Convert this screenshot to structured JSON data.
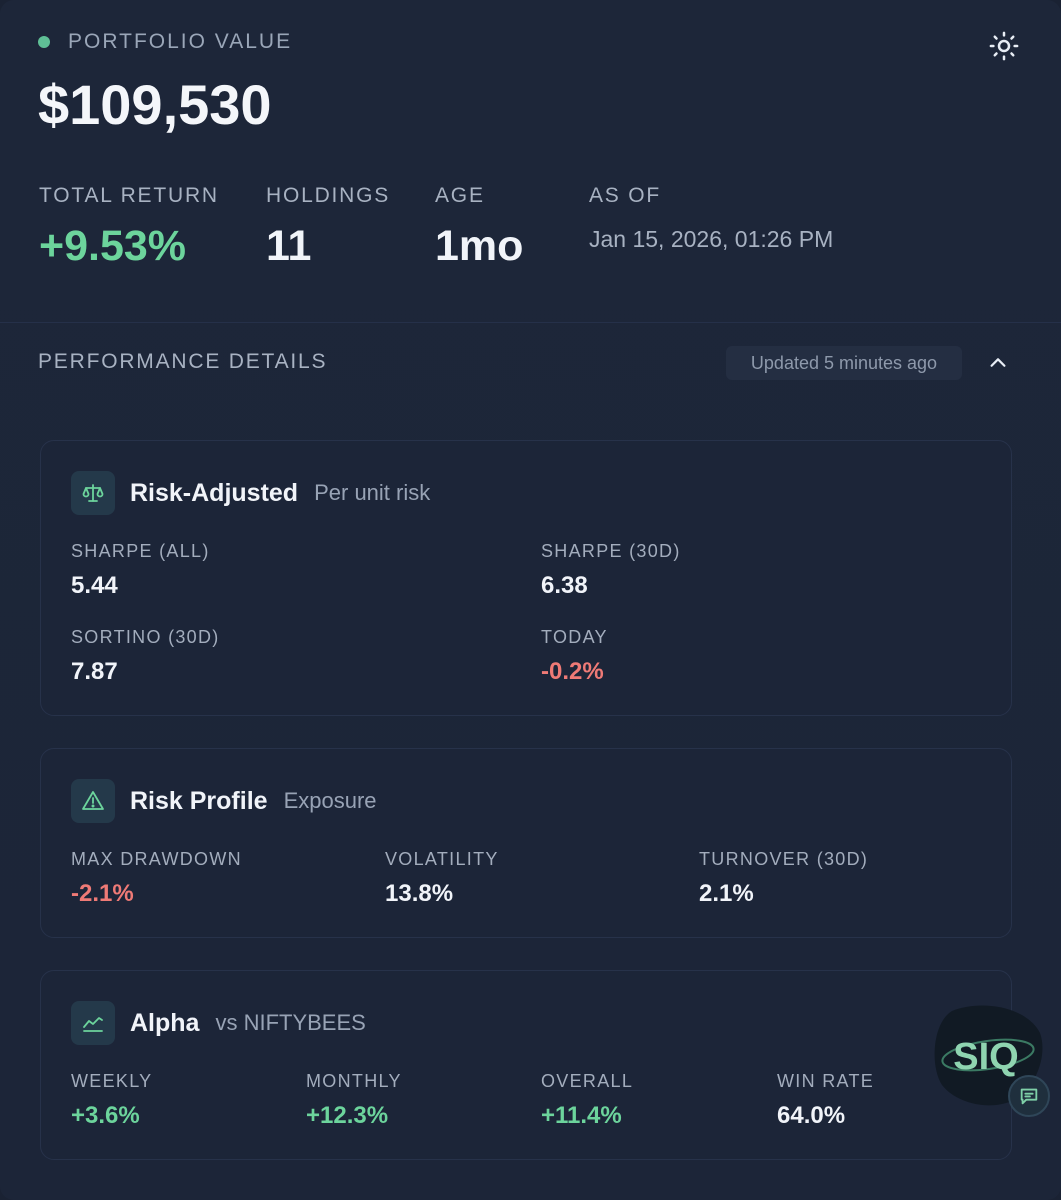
{
  "header": {
    "label": "PORTFOLIO VALUE",
    "value": "$109,530",
    "stats": [
      {
        "label": "TOTAL RETURN",
        "value": "+9.53%"
      },
      {
        "label": "HOLDINGS",
        "value": "11"
      },
      {
        "label": "AGE",
        "value": "1mo"
      },
      {
        "label": "AS OF",
        "value": "Jan 15, 2026, 01:26 PM"
      }
    ],
    "theme_icon": "sun-icon"
  },
  "performance": {
    "title": "PERFORMANCE DETAILS",
    "updated": "Updated 5 minutes ago",
    "toggle_icon": "chevron-up-icon"
  },
  "cards": {
    "risk_adjusted": {
      "title": "Risk-Adjusted",
      "subtitle": "Per unit risk",
      "icon": "scale-icon",
      "metrics": [
        {
          "label": "SHARPE (ALL)",
          "value": "5.44"
        },
        {
          "label": "SHARPE (30D)",
          "value": "6.38"
        },
        {
          "label": "SORTINO (30D)",
          "value": "7.87"
        },
        {
          "label": "TODAY",
          "value": "-0.2%"
        }
      ]
    },
    "risk_profile": {
      "title": "Risk Profile",
      "subtitle": "Exposure",
      "icon": "warning-icon",
      "metrics": [
        {
          "label": "MAX DRAWDOWN",
          "value": "-2.1%"
        },
        {
          "label": "VOLATILITY",
          "value": "13.8%"
        },
        {
          "label": "TURNOVER (30D)",
          "value": "2.1%"
        }
      ]
    },
    "alpha": {
      "title": "Alpha",
      "subtitle": "vs NIFTYBEES",
      "icon": "trend-chart-icon",
      "metrics": [
        {
          "label": "WEEKLY",
          "value": "+3.6%"
        },
        {
          "label": "MONTHLY",
          "value": "+12.3%"
        },
        {
          "label": "OVERALL",
          "value": "+11.4%"
        },
        {
          "label": "WIN RATE",
          "value": "64.0%"
        }
      ]
    }
  },
  "widget": {
    "logo_text": "SIQ",
    "chat_icon": "chat-bubble-icon"
  },
  "colors": {
    "background": "#1c2538",
    "positive": "#6cd49c",
    "negative": "#ef7a76",
    "status_dot": "#5fbf96"
  }
}
